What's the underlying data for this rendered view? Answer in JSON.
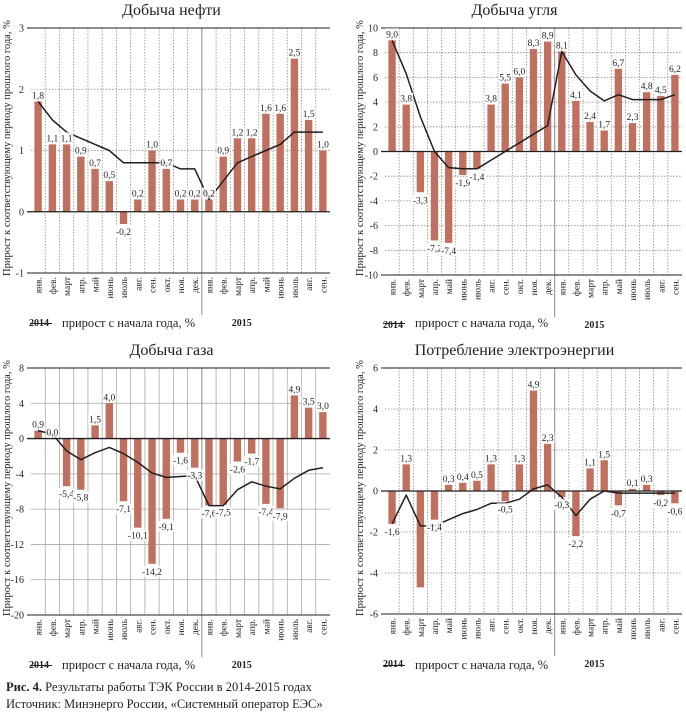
{
  "caption": {
    "figure_label": "Рис. 4.",
    "figure_text": " Результаты работы ТЭК России в 2014-2015 годах",
    "source": "Источник: Минэнерго России, «Системный оператор ЕЭС»"
  },
  "colors": {
    "bar": "#c0705f",
    "line": "#231f20",
    "grid": "#9b9b9b",
    "axis": "#4a4a4a"
  },
  "chart_data": [
    {
      "id": "oil",
      "type": "bar",
      "title": "Добыча нефти",
      "ylabel": "Прирост к соответствующему периоду прошлого года, %",
      "xlabel": "",
      "categories": [
        "янв.",
        "фев.",
        "март",
        "апр.",
        "май",
        "июнь",
        "июль",
        "авг.",
        "сен.",
        "окт.",
        "ноя.",
        "дек.",
        "янв.",
        "фев.",
        "март",
        "апр.",
        "май",
        "июнь",
        "июль",
        "авг.",
        "сен."
      ],
      "years": [
        {
          "label": "2014",
          "start_index": 0
        },
        {
          "label": "2015",
          "start_index": 12
        }
      ],
      "ylim": [
        -1,
        3
      ],
      "yticks": [
        -1,
        0,
        1,
        2,
        3
      ],
      "grid": "dotted",
      "legend": "прирост с начала года, %",
      "series": [
        {
          "name": "Прирост к соответствующему периоду прошлого года, %",
          "kind": "bar",
          "values": [
            1.8,
            1.1,
            1.1,
            0.9,
            0.7,
            0.5,
            -0.2,
            0.2,
            1.0,
            0.7,
            0.2,
            0.2,
            0.2,
            0.9,
            1.2,
            1.2,
            1.6,
            1.6,
            2.5,
            1.5,
            1.0
          ],
          "labels": [
            "1,8",
            "1,1",
            "1,1",
            "0,9",
            "0,7",
            "0,5",
            "-0,2",
            "0,2",
            "1,0",
            "0,7",
            "0,2",
            "0,2",
            "0,2",
            "0,9",
            "1,2",
            "1,2",
            "1,6",
            "1,6",
            "2,5",
            "1,5",
            "1,0"
          ]
        },
        {
          "name": "прирост с начала года, %",
          "kind": "line",
          "values": [
            1.8,
            1.5,
            1.3,
            1.2,
            1.1,
            1.0,
            0.8,
            0.8,
            0.8,
            0.8,
            0.7,
            0.7,
            0.2,
            0.5,
            0.8,
            0.9,
            1.0,
            1.1,
            1.3,
            1.3,
            1.3
          ]
        }
      ]
    },
    {
      "id": "coal",
      "type": "bar",
      "title": "Добыча угля",
      "ylabel": "Прирост к соответствующему периоду прошлого года, %",
      "xlabel": "",
      "categories": [
        "янв.",
        "фев.",
        "март",
        "апр.",
        "май",
        "июнь",
        "июль",
        "авг.",
        "сен.",
        "окт.",
        "ноя.",
        "дек.",
        "янв.",
        "фев.",
        "март",
        "апр.",
        "май",
        "июнь",
        "июль",
        "авг.",
        "сен."
      ],
      "years": [
        {
          "label": "2014",
          "start_index": 0
        },
        {
          "label": "2015",
          "start_index": 12
        }
      ],
      "ylim": [
        -10,
        10
      ],
      "yticks": [
        -10,
        -8,
        -6,
        -4,
        -2,
        0,
        2,
        4,
        6,
        8,
        10
      ],
      "grid": "dotted",
      "legend": "прирост с начала года, %",
      "series": [
        {
          "name": "Прирост к соответствующему периоду прошлого года, %",
          "kind": "bar",
          "values": [
            9.0,
            3.8,
            -3.3,
            -7.2,
            -7.4,
            -1.9,
            -1.4,
            3.8,
            5.5,
            6.0,
            8.3,
            8.9,
            8.1,
            4.1,
            2.4,
            1.7,
            6.7,
            2.3,
            4.8,
            4.5,
            6.2
          ],
          "labels": [
            "9,0",
            "3,8",
            "-3,3",
            "-7,2",
            "-7,4",
            "-1,9",
            "-1,4",
            "3,8",
            "5,5",
            "6,0",
            "8,3",
            "8,9",
            "8,1",
            "4,1",
            "2,4",
            "1,7",
            "6,7",
            "2,3",
            "4,8",
            "4,5",
            "6,2"
          ]
        },
        {
          "name": "прирост с начала года, %",
          "kind": "line",
          "values": [
            9.0,
            6.3,
            2.8,
            0.0,
            -1.3,
            -1.4,
            -1.4,
            -0.7,
            0.0,
            0.7,
            1.4,
            2.1,
            8.1,
            6.2,
            4.9,
            4.1,
            4.6,
            4.2,
            4.2,
            4.2,
            4.6
          ]
        }
      ]
    },
    {
      "id": "gas",
      "type": "bar",
      "title": "Добыча газа",
      "ylabel": "Прирост к соответствующему периоду прошлого года, %",
      "xlabel": "",
      "categories": [
        "янв.",
        "фев.",
        "март",
        "апр.",
        "май",
        "июнь",
        "июль",
        "авг.",
        "сен.",
        "окт.",
        "ноя.",
        "дек.",
        "янв.",
        "фев.",
        "март",
        "апр.",
        "май",
        "июнь",
        "июль",
        "авг.",
        "сен."
      ],
      "years": [
        {
          "label": "2014",
          "start_index": 0
        },
        {
          "label": "2015",
          "start_index": 12
        }
      ],
      "ylim": [
        -20,
        8
      ],
      "yticks": [
        -20,
        -16,
        -12,
        -8,
        -4,
        0,
        4,
        8
      ],
      "grid": "solid",
      "legend": "прирост с начала года, %",
      "series": [
        {
          "name": "Прирост к соответствующему периоду прошлого года, %",
          "kind": "bar",
          "values": [
            0.9,
            0.0,
            -5.4,
            -5.8,
            1.5,
            4.0,
            -7.1,
            -10.1,
            -14.2,
            -9.1,
            -1.6,
            -3.3,
            -7.6,
            -7.5,
            -2.6,
            -1.7,
            -7.4,
            -7.9,
            4.9,
            3.5,
            3.0
          ],
          "labels": [
            "0,9",
            "0,0",
            "-5,4",
            "-5,8",
            "1,5",
            "4,0",
            "-7,1",
            "-10,1",
            "-14,2",
            "-9,1",
            "-1,6",
            "-3,3",
            "-7,6",
            "-7,5",
            "-2,6",
            "-1,7",
            "-7,4",
            "-7,9",
            "4,9",
            "3,5",
            "3,0"
          ]
        },
        {
          "name": "прирост с начала года, %",
          "kind": "line",
          "values": [
            0.9,
            0.5,
            -1.4,
            -2.4,
            -1.6,
            -1.0,
            -1.7,
            -2.7,
            -3.9,
            -4.4,
            -4.3,
            -4.2,
            -7.6,
            -7.6,
            -5.8,
            -4.9,
            -5.4,
            -5.7,
            -4.5,
            -3.6,
            -3.3
          ]
        }
      ]
    },
    {
      "id": "electricity",
      "type": "bar",
      "title": "Потребление электроэнергии",
      "ylabel": "Прирост к соответствующему периоду прошлого года, %",
      "xlabel": "",
      "categories": [
        "янв.",
        "фев.",
        "март",
        "апр.",
        "май",
        "июнь",
        "июль",
        "авг.",
        "сен.",
        "окт.",
        "ноя.",
        "дек.",
        "янв.",
        "фев.",
        "март",
        "апр.",
        "май",
        "июнь",
        "июль",
        "авг.",
        "сен."
      ],
      "years": [
        {
          "label": "2014",
          "start_index": 0
        },
        {
          "label": "2015",
          "start_index": 12
        }
      ],
      "ylim": [
        -6,
        6
      ],
      "yticks": [
        -6,
        -4,
        -2,
        0,
        2,
        4,
        6
      ],
      "grid": "dotted",
      "legend": "прирост с начала года, %",
      "series": [
        {
          "name": "Прирост к соответствующему периоду прошлого года, %",
          "kind": "bar",
          "values": [
            -1.6,
            1.3,
            -4.7,
            -1.4,
            0.3,
            0.4,
            0.5,
            1.3,
            -0.5,
            1.3,
            4.9,
            2.3,
            -0.3,
            -2.2,
            1.1,
            1.5,
            -0.7,
            0.1,
            0.3,
            -0.2,
            -0.6
          ],
          "labels": [
            "-1,6",
            "1,3",
            "",
            "-1,4",
            "0,3",
            "0,4",
            "0,5",
            "1,3",
            "-0,5",
            "1,3",
            "4,9",
            "2,3",
            "-0,3",
            "-2,2",
            "1,1",
            "1,5",
            "-0,7",
            "0,1",
            "0,3",
            "-0,2",
            "-0,6"
          ]
        },
        {
          "name": "прирост с начала года, %",
          "kind": "line",
          "values": [
            -1.6,
            -0.2,
            -1.7,
            -1.7,
            -1.4,
            -1.1,
            -0.9,
            -0.6,
            -0.6,
            -0.4,
            0.1,
            0.3,
            -0.3,
            -1.2,
            -0.4,
            0.0,
            -0.1,
            -0.1,
            -0.1,
            -0.1,
            -0.1
          ]
        }
      ]
    }
  ]
}
